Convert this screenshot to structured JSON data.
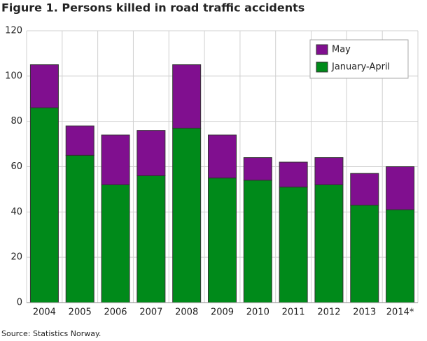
{
  "chart_data": {
    "type": "stacked_bar",
    "title": "Figure 1. Persons killed in road traffic accidents",
    "source": "Source: Statistics Norway.",
    "categories": [
      "2004",
      "2005",
      "2006",
      "2007",
      "2008",
      "2009",
      "2010",
      "2011",
      "2012",
      "2013",
      "2014*"
    ],
    "series": [
      {
        "name": "January-April",
        "color": "#008a1a",
        "values": [
          86,
          65,
          52,
          56,
          77,
          55,
          54,
          51,
          52,
          43,
          41
        ]
      },
      {
        "name": "May",
        "color": "#800f8f",
        "values": [
          19,
          13,
          22,
          20,
          28,
          19,
          10,
          11,
          12,
          14,
          19
        ]
      }
    ],
    "ylim": [
      0,
      120
    ],
    "yticks": [
      0,
      20,
      40,
      60,
      80,
      100,
      120
    ],
    "grid": true,
    "legend": "top-right"
  }
}
